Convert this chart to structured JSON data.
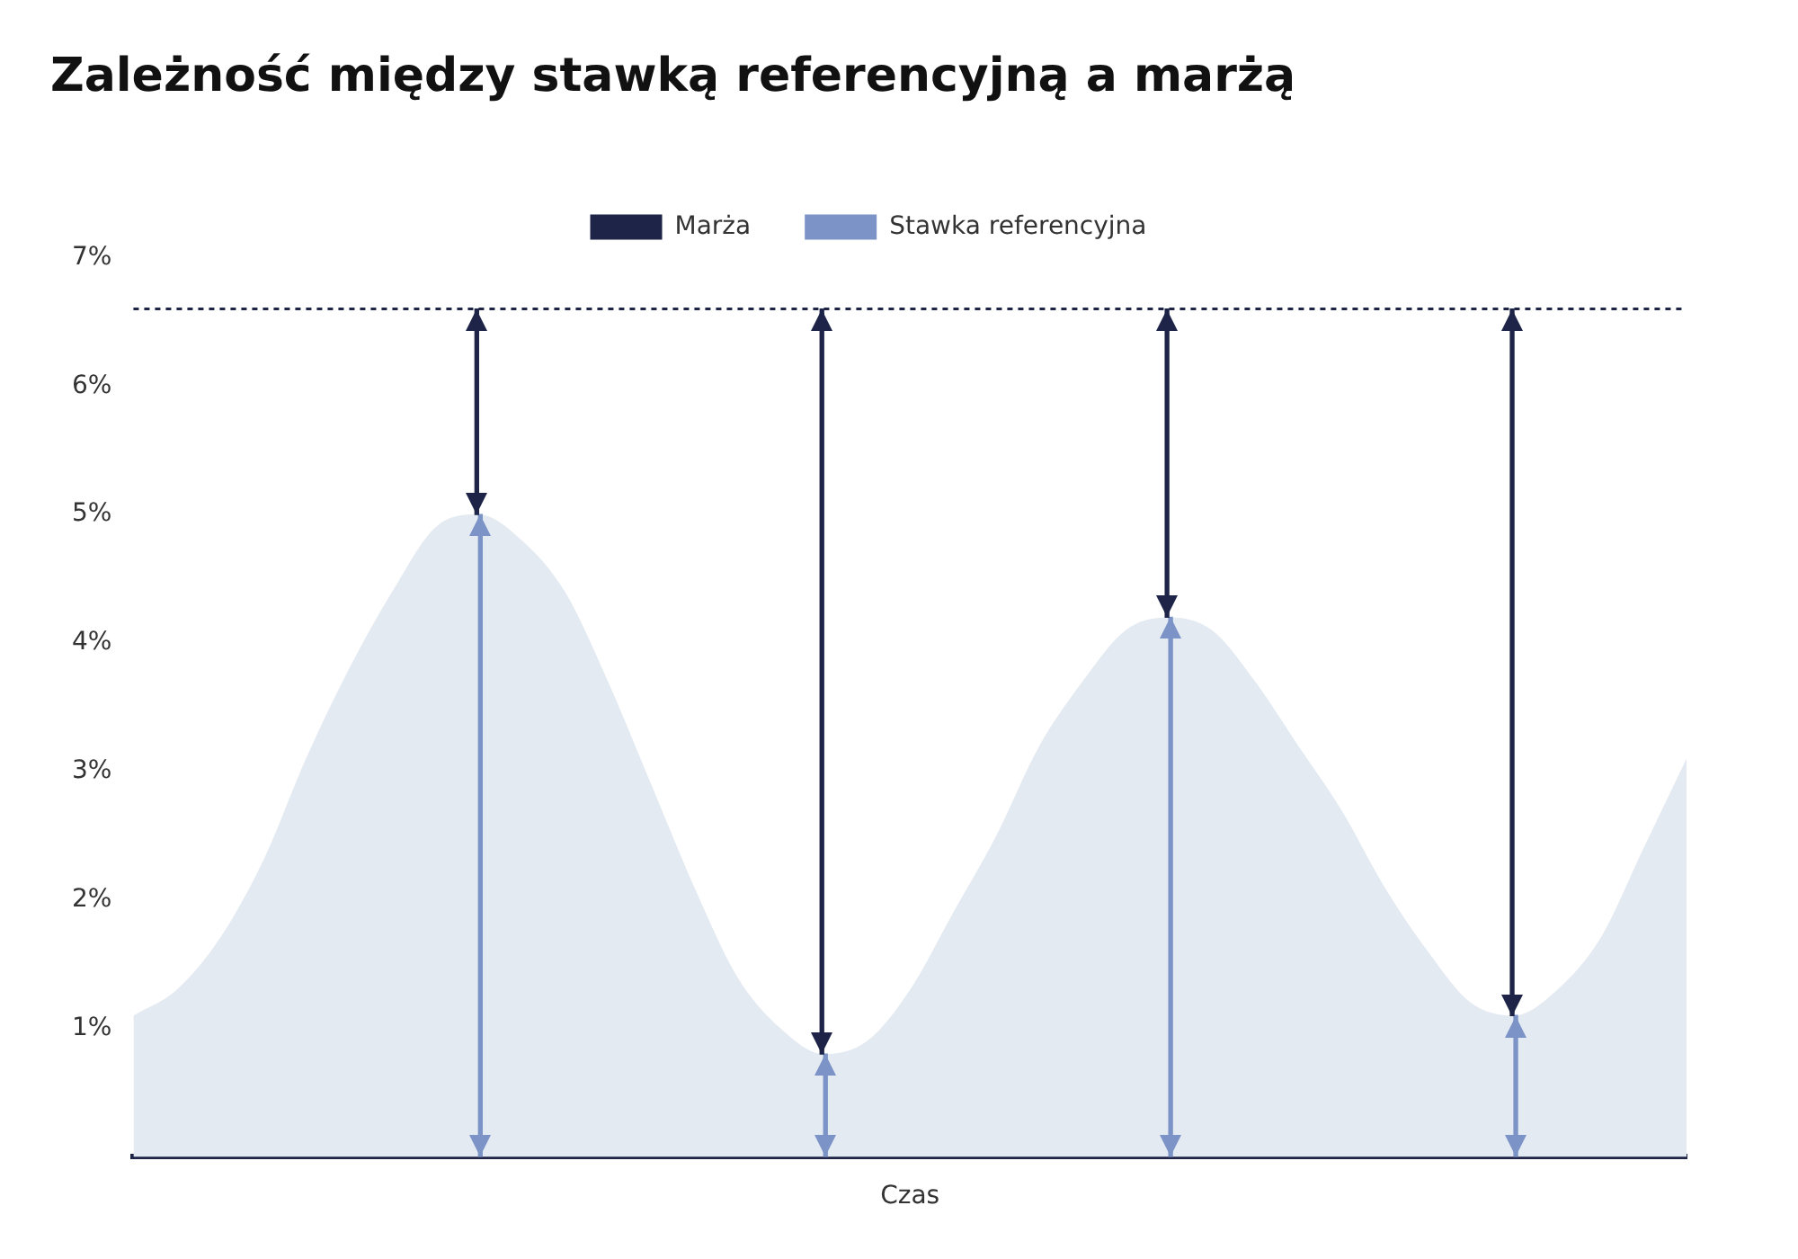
{
  "chart_data": {
    "type": "area",
    "title": "Zależność między stawką referencyjną a marżą",
    "xlabel": "Czas",
    "categories": [
      null,
      null,
      null,
      null,
      null,
      null,
      null,
      null,
      null,
      null,
      null,
      null,
      null,
      null,
      null,
      null,
      null,
      null,
      null,
      null,
      null,
      null,
      null,
      null,
      null,
      null,
      null,
      null,
      null,
      null,
      null,
      null,
      null,
      null,
      null,
      null,
      null
    ],
    "series": [
      {
        "color": "#e4eaf1",
        "values": [
          1.1,
          1.3,
          1.7,
          2.3,
          3.1,
          3.8,
          4.4,
          4.9,
          5.0,
          4.8,
          4.4,
          3.7,
          2.9,
          2.1,
          1.4,
          1.0,
          0.8,
          0.9,
          1.3,
          1.9,
          2.5,
          3.2,
          3.7,
          4.1,
          4.2,
          4.1,
          3.7,
          3.2,
          2.7,
          2.1,
          1.6,
          1.2,
          1.1,
          1.3,
          1.7,
          2.4,
          3.1
        ]
      },
      {
        "type": "bar",
        "name": "Marża",
        "color": "#1e2447",
        "values": [
          null,
          null,
          null,
          null,
          null,
          null,
          null,
          null,
          1.6,
          null,
          null,
          null,
          null,
          null,
          null,
          null,
          5.8,
          null,
          null,
          null,
          null,
          null,
          null,
          null,
          2.4,
          null,
          null,
          null,
          null,
          null,
          null,
          null,
          5.5,
          null,
          null,
          null,
          null
        ],
        "base": [
          null,
          null,
          null,
          null,
          null,
          null,
          null,
          null,
          5.0,
          null,
          null,
          null,
          null,
          null,
          null,
          null,
          0.8,
          null,
          null,
          null,
          null,
          null,
          null,
          null,
          4.2,
          null,
          null,
          null,
          null,
          null,
          null,
          null,
          1.1,
          null,
          null,
          null,
          null
        ]
      },
      {
        "type": "bar",
        "name": "Stawka referencyjna",
        "color": "#7b93c6",
        "values": [
          null,
          null,
          null,
          null,
          null,
          null,
          null,
          null,
          5.0,
          null,
          null,
          null,
          null,
          null,
          null,
          null,
          0.8,
          null,
          null,
          null,
          null,
          null,
          null,
          null,
          4.2,
          null,
          null,
          null,
          null,
          null,
          null,
          null,
          1.1,
          null,
          null,
          null,
          null
        ]
      }
    ],
    "ylim": [
      0,
      7
    ],
    "yticks": [
      {
        "value": 1,
        "label": "1%"
      },
      {
        "value": 2,
        "label": "2%"
      },
      {
        "value": 3,
        "label": "3%"
      },
      {
        "value": 4,
        "label": "4%"
      },
      {
        "value": 5,
        "label": "5%"
      },
      {
        "value": 6,
        "label": "6%"
      },
      {
        "value": 7,
        "label": "7%"
      }
    ],
    "tick_labels": "y",
    "grid": false,
    "legend": "top",
    "ref_lines": [
      {
        "axis": "y",
        "value": 6.6,
        "color": "#1e2447",
        "line_style": "dotted"
      }
    ]
  }
}
